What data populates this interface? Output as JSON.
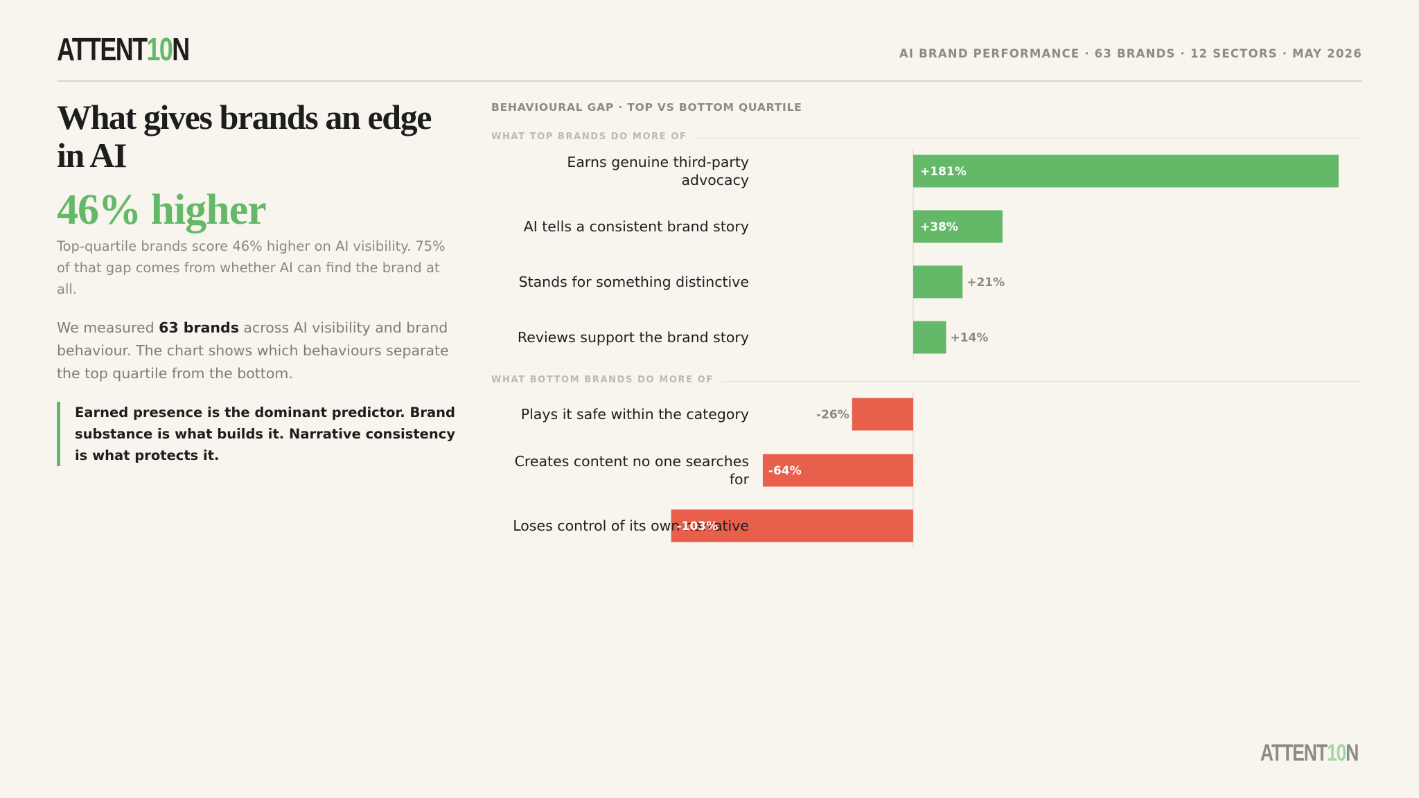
{
  "brand": {
    "logo_main": "ATTENT",
    "logo_highlight": "10",
    "logo_end": "N"
  },
  "header": {
    "meta": "AI BRAND PERFORMANCE · 63 BRANDS · 12 SECTORS · MAY 2026"
  },
  "left": {
    "headline": "What gives brands an edge in AI",
    "big_stat": "46% higher",
    "stat_desc": "Top-quartile brands score 46% higher on AI visibility. 75% of that gap comes from whether AI can find the brand at all.",
    "body_before": "We measured ",
    "body_bold": "63 brands",
    "body_after": " across AI visibility and brand behaviour. The chart shows which behaviours separate the top quartile from the bottom.",
    "callout": "Earned presence is the dominant predictor. Brand substance is what builds it. Narrative consistency is what protects it."
  },
  "colors": {
    "accent": "#63b967",
    "negative": "#e8604c"
  },
  "chart_data": {
    "type": "bar",
    "orientation": "horizontal",
    "title": "BEHAVIOURAL GAP · TOP VS BOTTOM QUARTILE",
    "groups": [
      {
        "label": "WHAT TOP BRANDS DO MORE OF",
        "categories": [
          [
            "Earns genuine third-party",
            "advocacy"
          ],
          [
            "AI tells a consistent brand story"
          ],
          [
            "Stands for something distinctive"
          ],
          [
            "Reviews support the brand story"
          ]
        ],
        "values": [
          181,
          38,
          21,
          14
        ],
        "value_labels": [
          "+181%",
          "+38%",
          "+21%",
          "+14%"
        ]
      },
      {
        "label": "WHAT BOTTOM BRANDS DO MORE OF",
        "categories": [
          [
            "Plays it safe within the category"
          ],
          [
            "Creates content no one searches",
            "for"
          ],
          [
            "Loses control of its own narrative"
          ]
        ],
        "values": [
          -26,
          -64,
          -103
        ],
        "value_labels": [
          "-26%",
          "-64%",
          "-103%"
        ]
      }
    ],
    "xlim": [
      -103,
      181
    ],
    "grid": false,
    "legend": "none"
  }
}
